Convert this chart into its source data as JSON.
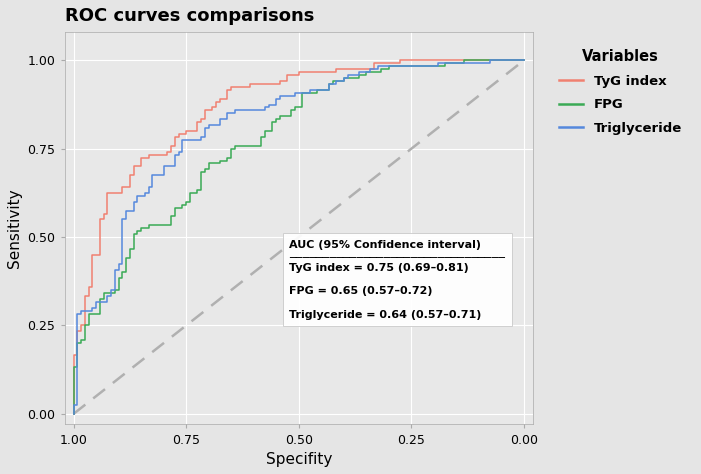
{
  "title": "ROC curves comparisons",
  "xlabel": "Specifity",
  "ylabel": "Sensitivity",
  "legend_title": "Variables",
  "background_color": "#e5e5e5",
  "plot_bg_color": "#e8e8e8",
  "grid_color": "#ffffff",
  "curves": {
    "TyG index": {
      "color": "#f08070",
      "auc": 0.75,
      "ci_low": 0.69,
      "ci_high": 0.81,
      "seed": 101
    },
    "FPG": {
      "color": "#3aaa55",
      "auc": 0.65,
      "ci_low": 0.57,
      "ci_high": 0.72,
      "seed": 202
    },
    "Triglyceride": {
      "color": "#5588dd",
      "auc": 0.64,
      "ci_low": 0.57,
      "ci_high": 0.71,
      "seed": 303
    }
  },
  "ann_title": "AUC (95% Confidence interval)",
  "ann_lines": [
    "TyG index = 0.75 (0.69–0.81)",
    "FPG = 0.65 (0.57–0.72)",
    "Triglyceride = 0.64 (0.57–0.71)"
  ],
  "xticks": [
    1.0,
    0.75,
    0.5,
    0.25,
    0.0
  ],
  "yticks": [
    0.0,
    0.25,
    0.5,
    0.75,
    1.0
  ],
  "xticklabels": [
    "1.00",
    "0.75",
    "0.50",
    "0.25",
    "0.00"
  ],
  "yticklabels": [
    "0.00",
    "0.25",
    "0.50",
    "0.75",
    "1.00"
  ]
}
